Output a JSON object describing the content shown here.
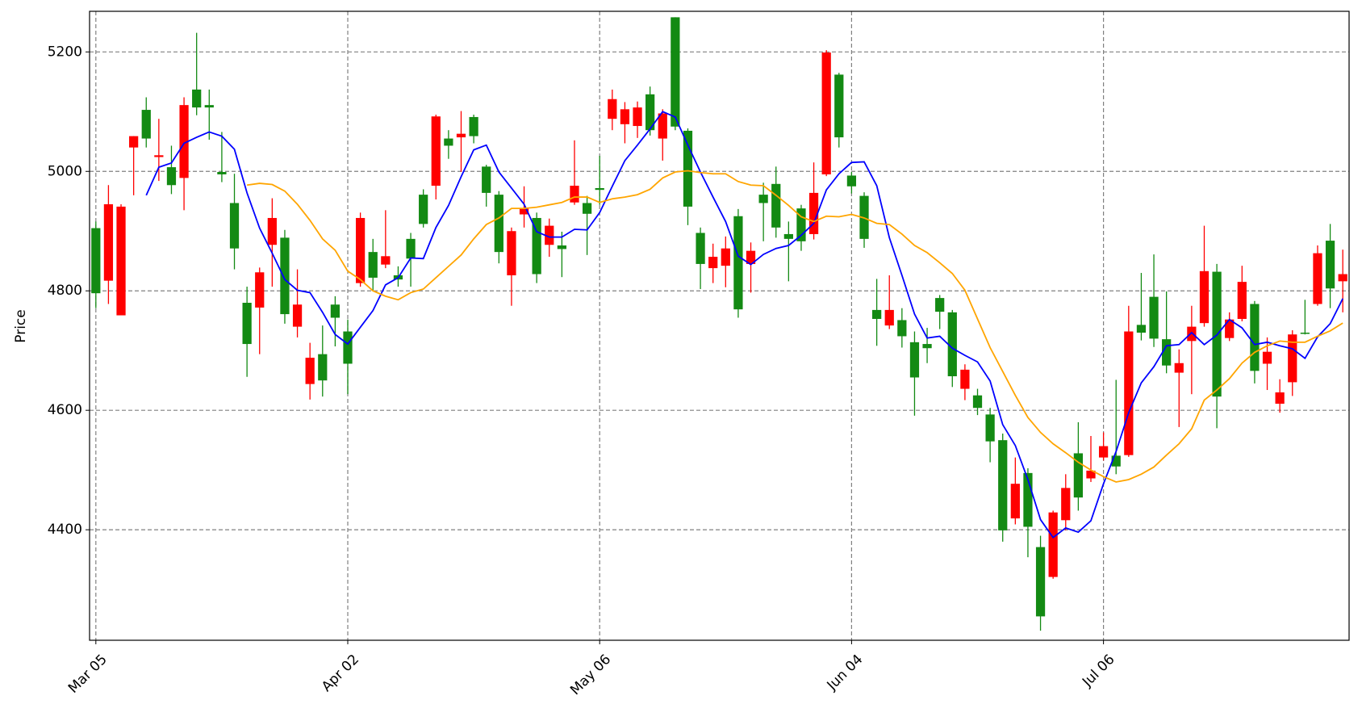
{
  "chart_data": {
    "type": "candlestick",
    "ylabel": "Price",
    "categories": [
      "Mar 05",
      null,
      null,
      null,
      null,
      null,
      null,
      null,
      null,
      null,
      null,
      null,
      null,
      null,
      null,
      null,
      null,
      null,
      null,
      null,
      "Apr 02",
      null,
      null,
      null,
      null,
      null,
      null,
      null,
      null,
      null,
      null,
      null,
      null,
      null,
      null,
      null,
      null,
      null,
      null,
      null,
      "May 06",
      null,
      null,
      null,
      null,
      null,
      null,
      null,
      null,
      null,
      null,
      null,
      null,
      null,
      null,
      null,
      null,
      null,
      null,
      null,
      "Jun 04",
      null,
      null,
      null,
      null,
      null,
      null,
      null,
      null,
      null,
      null,
      null,
      null,
      null,
      null,
      null,
      null,
      null,
      null,
      null,
      "Jul 06",
      null,
      null,
      null,
      null,
      null,
      null,
      null,
      null,
      null,
      null,
      null,
      null,
      null,
      null,
      null,
      null,
      null,
      null,
      null
    ],
    "open": [
      4796,
      4945,
      4941,
      5059,
      5055,
      5027,
      4977,
      5111,
      5107,
      5107,
      4995,
      4871,
      4711,
      4831,
      4922,
      4761,
      4777,
      4688,
      4650,
      4755,
      4678,
      4922,
      4822,
      4858,
      4819,
      4854,
      4912,
      5092,
      5043,
      5063,
      5059,
      4964,
      4865,
      4900,
      4938,
      4828,
      4909,
      4870,
      4976,
      4929,
      4969,
      5121,
      5104,
      5107,
      5069,
      5097,
      5075,
      4941,
      4845,
      4857,
      4871,
      4769,
      4867,
      4947,
      4906,
      4887,
      4883,
      4964,
      5199,
      5057,
      4975,
      4887,
      4753,
      4768,
      4724,
      4655,
      4704,
      4765,
      4657,
      4668,
      4604,
      4548,
      4399,
      4477,
      4405,
      4255,
      4429,
      4470,
      4454,
      4499,
      4540,
      4506,
      4732,
      4730,
      4720,
      4675,
      4679,
      4740,
      4833,
      4623,
      4752,
      4815,
      4666,
      4698,
      4630,
      4727,
      4729,
      4863,
      4804,
      4828
    ],
    "high": [
      4916,
      4977,
      4945,
      5059,
      5124,
      5088,
      5043,
      5124,
      5232,
      5137,
      5066,
      4996,
      4807,
      4839,
      4955,
      4902,
      4836,
      4713,
      4742,
      4791,
      4752,
      4931,
      4887,
      4935,
      4841,
      4897,
      4970,
      5095,
      5069,
      5101,
      5095,
      5011,
      4967,
      4906,
      4975,
      4931,
      4921,
      4899,
      5052,
      4959,
      5026,
      5137,
      5116,
      5117,
      5142,
      5104,
      5258,
      5072,
      4906,
      4879,
      4891,
      4937,
      4881,
      4981,
      5008,
      4916,
      4944,
      5015,
      5203,
      5165,
      4999,
      4965,
      4820,
      4826,
      4771,
      4732,
      4738,
      4793,
      4768,
      4677,
      4636,
      4604,
      4561,
      4521,
      4503,
      4390,
      4432,
      4493,
      4580,
      4557,
      4563,
      4651,
      4775,
      4830,
      4861,
      4799,
      4702,
      4775,
      4909,
      4845,
      4764,
      4842,
      4783,
      4722,
      4652,
      4734,
      4785,
      4876,
      4912,
      4869
    ],
    "low": [
      4771,
      4778,
      4759,
      4960,
      5040,
      4984,
      4962,
      4935,
      5094,
      5053,
      4982,
      4836,
      4656,
      4694,
      4807,
      4745,
      4722,
      4618,
      4623,
      4707,
      4627,
      4807,
      4800,
      4838,
      4807,
      4807,
      4906,
      4953,
      5021,
      4999,
      5047,
      4941,
      4846,
      4775,
      4906,
      4813,
      4857,
      4823,
      4944,
      4860,
      4944,
      5069,
      5047,
      5056,
      5060,
      5018,
      5069,
      4910,
      4803,
      4813,
      4806,
      4755,
      4797,
      4883,
      4889,
      4816,
      4867,
      4886,
      4992,
      5040,
      4963,
      4872,
      4708,
      4736,
      4705,
      4591,
      4679,
      4736,
      4639,
      4617,
      4592,
      4513,
      4380,
      4409,
      4354,
      4231,
      4318,
      4399,
      4432,
      4480,
      4516,
      4493,
      4522,
      4717,
      4706,
      4662,
      4572,
      4627,
      4740,
      4570,
      4716,
      4749,
      4645,
      4634,
      4596,
      4624,
      4727,
      4775,
      4771,
      4764
    ],
    "close": [
      4905,
      4817,
      4759,
      5040,
      5103,
      5024,
      5007,
      4989,
      5137,
      5111,
      4999,
      4947,
      4780,
      4772,
      4877,
      4889,
      4740,
      4644,
      4694,
      4777,
      4732,
      4813,
      4865,
      4844,
      4826,
      4887,
      4961,
      4976,
      5055,
      5057,
      5091,
      5008,
      4961,
      4826,
      4928,
      4922,
      4877,
      4876,
      4948,
      4947,
      4972,
      5088,
      5079,
      5076,
      5129,
      5055,
      5258,
      5068,
      4897,
      4838,
      4842,
      4925,
      4845,
      4961,
      4979,
      4895,
      4938,
      4895,
      4995,
      5162,
      4993,
      4959,
      4768,
      4742,
      4751,
      4714,
      4711,
      4788,
      4764,
      4636,
      4625,
      4593,
      4550,
      4419,
      4495,
      4371,
      4321,
      4416,
      4528,
      4486,
      4521,
      4524,
      4525,
      4743,
      4790,
      4719,
      4663,
      4716,
      4746,
      4832,
      4721,
      4753,
      4778,
      4678,
      4611,
      4647,
      4730,
      4778,
      4884,
      4816
    ],
    "up_color": "#138a13",
    "down_color": "#ff0000",
    "lines": [
      {
        "color": "#0000ff",
        "values": [
          null,
          null,
          null,
          null,
          4960,
          5007,
          5014,
          5047,
          5057,
          5066,
          5059,
          5037,
          4964,
          4905,
          4863,
          4819,
          4801,
          4797,
          4764,
          4727,
          4711,
          4739,
          4767,
          4810,
          4822,
          4855,
          4854,
          4906,
          4943,
          4991,
          5036,
          5044,
          4999,
          4972,
          4945,
          4899,
          4890,
          4890,
          4903,
          4902,
          4931,
          4975,
          5018,
          5044,
          5071,
          5100,
          5091,
          5044,
          4999,
          4957,
          4916,
          4858,
          4844,
          4861,
          4871,
          4876,
          4893,
          4913,
          4969,
          4996,
          5015,
          5016,
          4976,
          4889,
          4826,
          4761,
          4721,
          4724,
          4704,
          4692,
          4681,
          4649,
          4576,
          4541,
          4484,
          4417,
          4387,
          4403,
          4396,
          4415,
          4477,
          4531,
          4596,
          4646,
          4673,
          4708,
          4710,
          4730,
          4710,
          4726,
          4752,
          4738,
          4710,
          4714,
          4708,
          4703,
          4687,
          4723,
          4745,
          4787
        ]
      },
      {
        "color": "#ffa500",
        "values": [
          null,
          null,
          null,
          null,
          null,
          null,
          null,
          null,
          null,
          null,
          null,
          null,
          4977,
          4980,
          4978,
          4967,
          4945,
          4918,
          4887,
          4868,
          4833,
          4819,
          4800,
          4791,
          4785,
          4797,
          4803,
          4822,
          4841,
          4860,
          4887,
          4911,
          4922,
          4938,
          4938,
          4940,
          4944,
          4948,
          4957,
          4957,
          4948,
          4954,
          4957,
          4961,
          4970,
          4989,
          4999,
          5001,
          4998,
          4996,
          4996,
          4983,
          4977,
          4976,
          4960,
          4943,
          4924,
          4916,
          4925,
          4924,
          4928,
          4922,
          4913,
          4911,
          4895,
          4876,
          4864,
          4847,
          4829,
          4801,
          4753,
          4705,
          4665,
          4625,
          4588,
          4563,
          4544,
          4529,
          4513,
          4500,
          4489,
          4480,
          4484,
          4493,
          4505,
          4525,
          4544,
          4569,
          4617,
          4634,
          4653,
          4679,
          4697,
          4708,
          4716,
          4714,
          4714,
          4724,
          4733,
          4746
        ]
      }
    ],
    "ylim": [
      4215,
      5268
    ],
    "yticks": [
      4400,
      4600,
      4800,
      5000,
      5200
    ],
    "grid": true
  }
}
